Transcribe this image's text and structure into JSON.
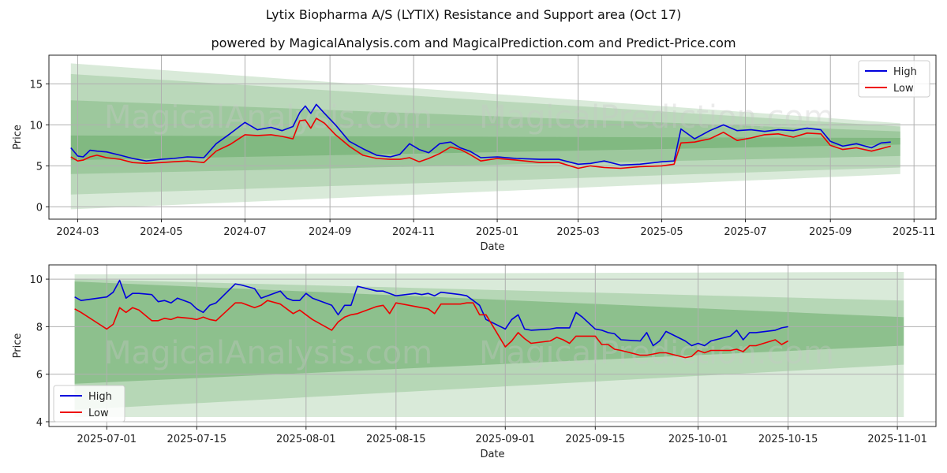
{
  "colors": {
    "high": "#0000dd",
    "low": "#ee0000",
    "band": "#2e8b2e",
    "grid": "#b0b0b0"
  },
  "watermarks": [
    "MagicalAnalysis.com",
    "MagicalPrediction.com"
  ],
  "chart_data": [
    {
      "type": "line",
      "title": "Lytix Biopharma A/S (LYTIX) Resistance and Support area (Oct 17)",
      "subtitle": "powered by MagicalAnalysis.com and MagicalPrediction.com and Predict-Price.com",
      "xlabel": "Date",
      "ylabel": "Price",
      "xlim": [
        "2024-02-09",
        "2025-11-17"
      ],
      "ylim": [
        -1.5,
        18.5
      ],
      "xticks": [
        "2024-03-01",
        "2024-05-01",
        "2024-07-01",
        "2024-09-01",
        "2024-11-01",
        "2025-01-01",
        "2025-03-01",
        "2025-05-01",
        "2025-07-01",
        "2025-09-01",
        "2025-11-01"
      ],
      "xtick_labels": [
        "2024-03",
        "2024-05",
        "2024-07",
        "2024-09",
        "2024-11",
        "2025-01",
        "2025-03",
        "2025-05",
        "2025-07",
        "2025-09",
        "2025-11"
      ],
      "yticks": [
        0,
        5,
        10,
        15
      ],
      "ytick_labels": [
        "0",
        "5",
        "10",
        "15"
      ],
      "legend": {
        "position": "top-right",
        "entries": [
          "High",
          "Low"
        ]
      },
      "bands": [
        {
          "x": [
            "2024-02-25",
            "2025-10-22"
          ],
          "upper": [
            17.5,
            10.2
          ],
          "lower": [
            -0.3,
            4.0
          ],
          "alpha": 0.18
        },
        {
          "x": [
            "2024-02-25",
            "2025-10-22"
          ],
          "upper": [
            16.2,
            9.8
          ],
          "lower": [
            1.5,
            4.8
          ],
          "alpha": 0.18
        },
        {
          "x": [
            "2024-02-25",
            "2025-10-22"
          ],
          "upper": [
            13.0,
            9.2
          ],
          "lower": [
            4.0,
            6.2
          ],
          "alpha": 0.2
        },
        {
          "x": [
            "2024-02-25",
            "2025-10-22"
          ],
          "upper": [
            8.7,
            8.4
          ],
          "lower": [
            5.7,
            7.6
          ],
          "alpha": 0.25
        }
      ],
      "series": [
        {
          "name": "High",
          "x": [
            "2024-02-25",
            "2024-03-01",
            "2024-03-05",
            "2024-03-10",
            "2024-03-15",
            "2024-03-22",
            "2024-04-01",
            "2024-04-10",
            "2024-04-20",
            "2024-05-01",
            "2024-05-10",
            "2024-05-20",
            "2024-06-01",
            "2024-06-10",
            "2024-06-20",
            "2024-07-01",
            "2024-07-10",
            "2024-07-20",
            "2024-07-28",
            "2024-08-05",
            "2024-08-10",
            "2024-08-14",
            "2024-08-18",
            "2024-08-22",
            "2024-08-28",
            "2024-09-05",
            "2024-09-15",
            "2024-09-25",
            "2024-10-05",
            "2024-10-15",
            "2024-10-22",
            "2024-10-29",
            "2024-11-05",
            "2024-11-12",
            "2024-11-20",
            "2024-11-28",
            "2024-12-05",
            "2024-12-12",
            "2024-12-20",
            "2025-01-01",
            "2025-01-15",
            "2025-02-01",
            "2025-02-15",
            "2025-03-01",
            "2025-03-10",
            "2025-03-20",
            "2025-04-01",
            "2025-04-15",
            "2025-05-01",
            "2025-05-10",
            "2025-05-15",
            "2025-05-25",
            "2025-06-05",
            "2025-06-15",
            "2025-06-25",
            "2025-07-05",
            "2025-07-15",
            "2025-07-25",
            "2025-08-05",
            "2025-08-15",
            "2025-08-25",
            "2025-09-01",
            "2025-09-10",
            "2025-09-20",
            "2025-10-01",
            "2025-10-08",
            "2025-10-15"
          ],
          "values": [
            7.2,
            6.2,
            6.1,
            6.9,
            6.8,
            6.7,
            6.3,
            5.9,
            5.6,
            5.8,
            5.9,
            6.1,
            6.0,
            7.7,
            8.9,
            10.3,
            9.4,
            9.7,
            9.3,
            9.8,
            11.5,
            12.3,
            11.4,
            12.5,
            11.4,
            10.0,
            8.0,
            7.1,
            6.3,
            6.1,
            6.4,
            7.7,
            7.0,
            6.6,
            7.7,
            7.9,
            7.2,
            6.8,
            6.0,
            6.1,
            5.9,
            5.8,
            5.8,
            5.2,
            5.3,
            5.6,
            5.1,
            5.2,
            5.5,
            5.6,
            9.5,
            8.3,
            9.3,
            10.0,
            9.3,
            9.4,
            9.2,
            9.4,
            9.3,
            9.6,
            9.4,
            8.0,
            7.4,
            7.7,
            7.2,
            7.8,
            7.9
          ]
        },
        {
          "name": "Low",
          "x": [
            "2024-02-25",
            "2024-03-01",
            "2024-03-05",
            "2024-03-10",
            "2024-03-15",
            "2024-03-22",
            "2024-04-01",
            "2024-04-10",
            "2024-04-20",
            "2024-05-01",
            "2024-05-10",
            "2024-05-20",
            "2024-06-01",
            "2024-06-10",
            "2024-06-20",
            "2024-07-01",
            "2024-07-10",
            "2024-07-20",
            "2024-07-28",
            "2024-08-05",
            "2024-08-10",
            "2024-08-14",
            "2024-08-18",
            "2024-08-22",
            "2024-08-28",
            "2024-09-05",
            "2024-09-15",
            "2024-09-25",
            "2024-10-05",
            "2024-10-15",
            "2024-10-22",
            "2024-10-29",
            "2024-11-05",
            "2024-11-12",
            "2024-11-20",
            "2024-11-28",
            "2024-12-05",
            "2024-12-12",
            "2024-12-20",
            "2025-01-01",
            "2025-01-15",
            "2025-02-01",
            "2025-02-15",
            "2025-03-01",
            "2025-03-10",
            "2025-03-20",
            "2025-04-01",
            "2025-04-15",
            "2025-05-01",
            "2025-05-10",
            "2025-05-15",
            "2025-05-25",
            "2025-06-05",
            "2025-06-15",
            "2025-06-25",
            "2025-07-05",
            "2025-07-15",
            "2025-07-25",
            "2025-08-05",
            "2025-08-15",
            "2025-08-25",
            "2025-09-01",
            "2025-09-10",
            "2025-09-20",
            "2025-10-01",
            "2025-10-08",
            "2025-10-15"
          ],
          "values": [
            6.1,
            5.6,
            5.7,
            6.1,
            6.3,
            6.0,
            5.8,
            5.4,
            5.3,
            5.4,
            5.5,
            5.6,
            5.4,
            6.8,
            7.6,
            8.8,
            8.7,
            8.8,
            8.6,
            8.3,
            10.5,
            10.6,
            9.6,
            10.8,
            10.2,
            8.8,
            7.4,
            6.3,
            5.9,
            5.8,
            5.8,
            6.0,
            5.5,
            5.9,
            6.5,
            7.3,
            7.0,
            6.4,
            5.6,
            5.9,
            5.7,
            5.4,
            5.4,
            4.7,
            5.0,
            4.8,
            4.7,
            4.9,
            5.0,
            5.2,
            7.8,
            7.9,
            8.3,
            9.1,
            8.1,
            8.4,
            8.8,
            8.9,
            8.5,
            9.0,
            8.9,
            7.5,
            7.0,
            7.2,
            6.8,
            7.1,
            7.4
          ]
        }
      ]
    },
    {
      "type": "line",
      "xlabel": "Date",
      "ylabel": "Price",
      "xlim": [
        "2025-06-22",
        "2025-11-07"
      ],
      "ylim": [
        3.8,
        10.6
      ],
      "xticks": [
        "2025-07-01",
        "2025-07-15",
        "2025-08-01",
        "2025-08-15",
        "2025-09-01",
        "2025-09-15",
        "2025-10-01",
        "2025-10-15",
        "2025-11-01"
      ],
      "xtick_labels": [
        "2025-07-01",
        "2025-07-15",
        "2025-08-01",
        "2025-08-15",
        "2025-09-01",
        "2025-09-15",
        "2025-10-01",
        "2025-10-15",
        "2025-11-01"
      ],
      "yticks": [
        4,
        6,
        8,
        10
      ],
      "ytick_labels": [
        "4",
        "6",
        "8",
        "10"
      ],
      "legend": {
        "position": "bottom-left",
        "entries": [
          "High",
          "Low"
        ]
      },
      "bands": [
        {
          "x": [
            "2025-06-26",
            "2025-11-02"
          ],
          "upper": [
            10.2,
            10.3
          ],
          "lower": [
            4.2,
            4.2
          ],
          "alpha": 0.18
        },
        {
          "x": [
            "2025-06-26",
            "2025-11-02"
          ],
          "upper": [
            10.0,
            9.1
          ],
          "lower": [
            4.5,
            6.4
          ],
          "alpha": 0.2
        },
        {
          "x": [
            "2025-06-26",
            "2025-11-02"
          ],
          "upper": [
            9.9,
            8.4
          ],
          "lower": [
            5.6,
            7.2
          ],
          "alpha": 0.3
        }
      ],
      "series": [
        {
          "name": "High",
          "x": [
            "2025-06-26",
            "2025-06-27",
            "2025-07-01",
            "2025-07-02",
            "2025-07-03",
            "2025-07-04",
            "2025-07-05",
            "2025-07-06",
            "2025-07-08",
            "2025-07-09",
            "2025-07-10",
            "2025-07-11",
            "2025-07-12",
            "2025-07-14",
            "2025-07-15",
            "2025-07-16",
            "2025-07-17",
            "2025-07-18",
            "2025-07-21",
            "2025-07-22",
            "2025-07-24",
            "2025-07-25",
            "2025-07-26",
            "2025-07-28",
            "2025-07-29",
            "2025-07-30",
            "2025-07-31",
            "2025-08-01",
            "2025-08-02",
            "2025-08-05",
            "2025-08-06",
            "2025-08-07",
            "2025-08-08",
            "2025-08-09",
            "2025-08-12",
            "2025-08-13",
            "2025-08-14",
            "2025-08-15",
            "2025-08-18",
            "2025-08-19",
            "2025-08-20",
            "2025-08-21",
            "2025-08-22",
            "2025-08-25",
            "2025-08-26",
            "2025-08-27",
            "2025-08-28",
            "2025-08-29",
            "2025-09-01",
            "2025-09-02",
            "2025-09-03",
            "2025-09-04",
            "2025-09-05",
            "2025-09-08",
            "2025-09-09",
            "2025-09-10",
            "2025-09-11",
            "2025-09-12",
            "2025-09-13",
            "2025-09-15",
            "2025-09-16",
            "2025-09-17",
            "2025-09-18",
            "2025-09-19",
            "2025-09-22",
            "2025-09-23",
            "2025-09-24",
            "2025-09-25",
            "2025-09-26",
            "2025-09-29",
            "2025-09-30",
            "2025-10-01",
            "2025-10-02",
            "2025-10-03",
            "2025-10-06",
            "2025-10-07",
            "2025-10-08",
            "2025-10-09",
            "2025-10-10",
            "2025-10-13",
            "2025-10-14",
            "2025-10-15"
          ],
          "values": [
            9.25,
            9.1,
            9.25,
            9.45,
            9.95,
            9.2,
            9.4,
            9.4,
            9.35,
            9.05,
            9.1,
            9.0,
            9.2,
            9.0,
            8.75,
            8.6,
            8.9,
            9.0,
            9.8,
            9.75,
            9.6,
            9.2,
            9.3,
            9.5,
            9.2,
            9.1,
            9.1,
            9.4,
            9.2,
            8.9,
            8.5,
            8.9,
            8.9,
            9.7,
            9.5,
            9.5,
            9.4,
            9.3,
            9.4,
            9.35,
            9.4,
            9.3,
            9.45,
            9.35,
            9.3,
            9.1,
            8.9,
            8.3,
            7.9,
            8.3,
            8.5,
            7.9,
            7.85,
            7.9,
            7.95,
            7.95,
            7.95,
            8.6,
            8.4,
            7.9,
            7.85,
            7.75,
            7.7,
            7.45,
            7.4,
            7.75,
            7.2,
            7.4,
            7.8,
            7.4,
            7.2,
            7.3,
            7.2,
            7.4,
            7.6,
            7.85,
            7.45,
            7.75,
            7.75,
            7.85,
            7.95,
            8.0
          ]
        },
        {
          "name": "Low",
          "x": [
            "2025-06-26",
            "2025-06-27",
            "2025-07-01",
            "2025-07-02",
            "2025-07-03",
            "2025-07-04",
            "2025-07-05",
            "2025-07-06",
            "2025-07-08",
            "2025-07-09",
            "2025-07-10",
            "2025-07-11",
            "2025-07-12",
            "2025-07-14",
            "2025-07-15",
            "2025-07-16",
            "2025-07-17",
            "2025-07-18",
            "2025-07-21",
            "2025-07-22",
            "2025-07-24",
            "2025-07-25",
            "2025-07-26",
            "2025-07-28",
            "2025-07-29",
            "2025-07-30",
            "2025-07-31",
            "2025-08-01",
            "2025-08-02",
            "2025-08-05",
            "2025-08-06",
            "2025-08-07",
            "2025-08-08",
            "2025-08-09",
            "2025-08-12",
            "2025-08-13",
            "2025-08-14",
            "2025-08-15",
            "2025-08-18",
            "2025-08-19",
            "2025-08-20",
            "2025-08-21",
            "2025-08-22",
            "2025-08-25",
            "2025-08-26",
            "2025-08-27",
            "2025-08-28",
            "2025-08-29",
            "2025-09-01",
            "2025-09-02",
            "2025-09-03",
            "2025-09-04",
            "2025-09-05",
            "2025-09-08",
            "2025-09-09",
            "2025-09-10",
            "2025-09-11",
            "2025-09-12",
            "2025-09-13",
            "2025-09-15",
            "2025-09-16",
            "2025-09-17",
            "2025-09-18",
            "2025-09-19",
            "2025-09-22",
            "2025-09-23",
            "2025-09-24",
            "2025-09-25",
            "2025-09-26",
            "2025-09-29",
            "2025-09-30",
            "2025-10-01",
            "2025-10-02",
            "2025-10-03",
            "2025-10-06",
            "2025-10-07",
            "2025-10-08",
            "2025-10-09",
            "2025-10-10",
            "2025-10-13",
            "2025-10-14",
            "2025-10-15"
          ],
          "values": [
            8.75,
            8.6,
            7.9,
            8.1,
            8.8,
            8.6,
            8.8,
            8.7,
            8.25,
            8.25,
            8.35,
            8.3,
            8.4,
            8.35,
            8.3,
            8.4,
            8.3,
            8.25,
            9.0,
            9.0,
            8.8,
            8.9,
            9.1,
            8.95,
            8.75,
            8.55,
            8.7,
            8.5,
            8.3,
            7.85,
            8.2,
            8.4,
            8.5,
            8.55,
            8.85,
            8.9,
            8.55,
            9.0,
            8.85,
            8.8,
            8.75,
            8.55,
            8.95,
            8.95,
            9.0,
            9.0,
            8.5,
            8.5,
            7.15,
            7.4,
            7.75,
            7.5,
            7.3,
            7.4,
            7.55,
            7.45,
            7.3,
            7.6,
            7.6,
            7.6,
            7.25,
            7.25,
            7.05,
            7.0,
            6.8,
            6.8,
            6.85,
            6.9,
            6.9,
            6.7,
            6.75,
            7.0,
            6.9,
            7.0,
            7.0,
            7.05,
            6.95,
            7.2,
            7.2,
            7.45,
            7.25,
            7.4
          ]
        }
      ]
    }
  ]
}
